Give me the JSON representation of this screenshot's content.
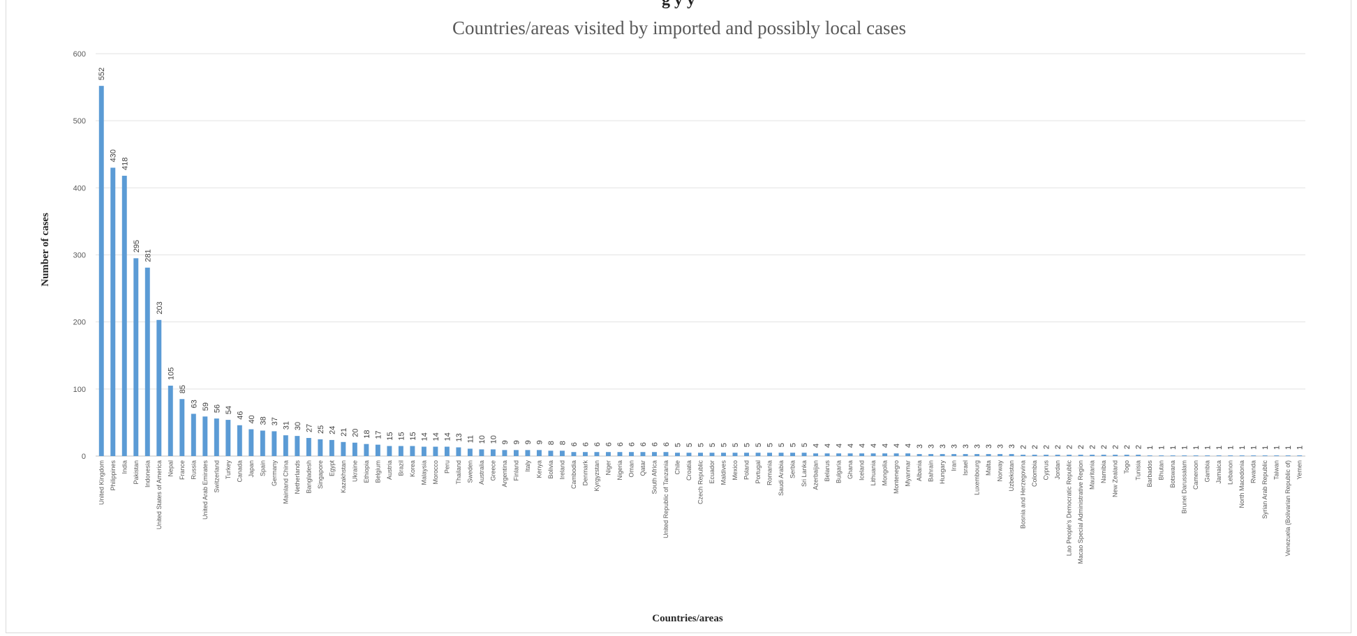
{
  "page_header_fragment": "g                                                              y                                          y",
  "chart_data": {
    "type": "bar",
    "title": "Countries/areas visited by imported and possibly local cases",
    "xlabel": "Countries/areas",
    "ylabel": "Number of cases",
    "ylim": [
      0,
      600
    ],
    "yticks": [
      0,
      100,
      200,
      300,
      400,
      500,
      600
    ],
    "grid": true,
    "legend": "none",
    "bar_color": "#5b9bd5",
    "categories": [
      "United Kingdom",
      "Philippines",
      "India",
      "Pakistan",
      "Indonesia",
      "United States of America",
      "Nepal",
      "France",
      "Russia",
      "United Arab Emirates",
      "Switzerland",
      "Turkey",
      "Canada",
      "Japan",
      "Spain",
      "Germany",
      "Mainland China",
      "Netherlands",
      "Bangladesh",
      "Singapore",
      "Egypt",
      "Kazakhstan",
      "Ukraine",
      "Ethiopia",
      "Belgium",
      "Austria",
      "Brazil",
      "Korea",
      "Malaysia",
      "Morocco",
      "Peru",
      "Thailand",
      "Sweden",
      "Australia",
      "Greece",
      "Argentina",
      "Finland",
      "Italy",
      "Kenya",
      "Bolivia",
      "Ireland",
      "Cambodia",
      "Denmark",
      "Kyrgyzstan",
      "Niger",
      "Nigeria",
      "Oman",
      "Qatar",
      "South Africa",
      "United Republic of Tanzania",
      "Chile",
      "Croatia",
      "Czech Republic",
      "Ecuador",
      "Maldives",
      "Mexico",
      "Poland",
      "Portugal",
      "Romania",
      "Saudi Arabia",
      "Serbia",
      "Sri Lanka",
      "Azerbaijan",
      "Belarus",
      "Bulgaria",
      "Ghana",
      "Iceland",
      "Lithuania",
      "Mongolia",
      "Montenegro",
      "Myanmar",
      "Albania",
      "Bahrain",
      "Hungary",
      "Iran",
      "Israel",
      "Luxembourg",
      "Malta",
      "Norway",
      "Uzbekistan",
      "Bosnia and Herzegovina",
      "Colombia",
      "Cyprus",
      "Jordan",
      "Lao People's Democratic Republic",
      "Macao Special Administrative Region",
      "Mauritania",
      "Namibia",
      "New Zealand",
      "Togo",
      "Tunisia",
      "Barbados",
      "Bhutan",
      "Botswana",
      "Brunei Darussalam",
      "Cameroon",
      "Gambia",
      "Jamaica",
      "Lebanon",
      "North Macedonia",
      "Rwanda",
      "Syrian Arab Republic",
      "Taiwan",
      "Venezuela (Bolivarian Republic of)",
      "Yemen"
    ],
    "values": [
      552,
      430,
      418,
      295,
      281,
      203,
      105,
      85,
      63,
      59,
      56,
      54,
      46,
      40,
      38,
      37,
      31,
      30,
      27,
      25,
      24,
      21,
      20,
      18,
      17,
      15,
      15,
      15,
      14,
      14,
      14,
      13,
      11,
      10,
      10,
      9,
      9,
      9,
      9,
      8,
      8,
      6,
      6,
      6,
      6,
      6,
      6,
      6,
      6,
      6,
      5,
      5,
      5,
      5,
      5,
      5,
      5,
      5,
      5,
      5,
      5,
      5,
      4,
      4,
      4,
      4,
      4,
      4,
      4,
      4,
      4,
      3,
      3,
      3,
      3,
      3,
      3,
      3,
      3,
      3,
      2,
      2,
      2,
      2,
      2,
      2,
      2,
      2,
      2,
      2,
      2,
      1,
      1,
      1,
      1,
      1,
      1,
      1,
      1,
      1,
      1,
      1,
      1,
      1,
      1
    ]
  }
}
